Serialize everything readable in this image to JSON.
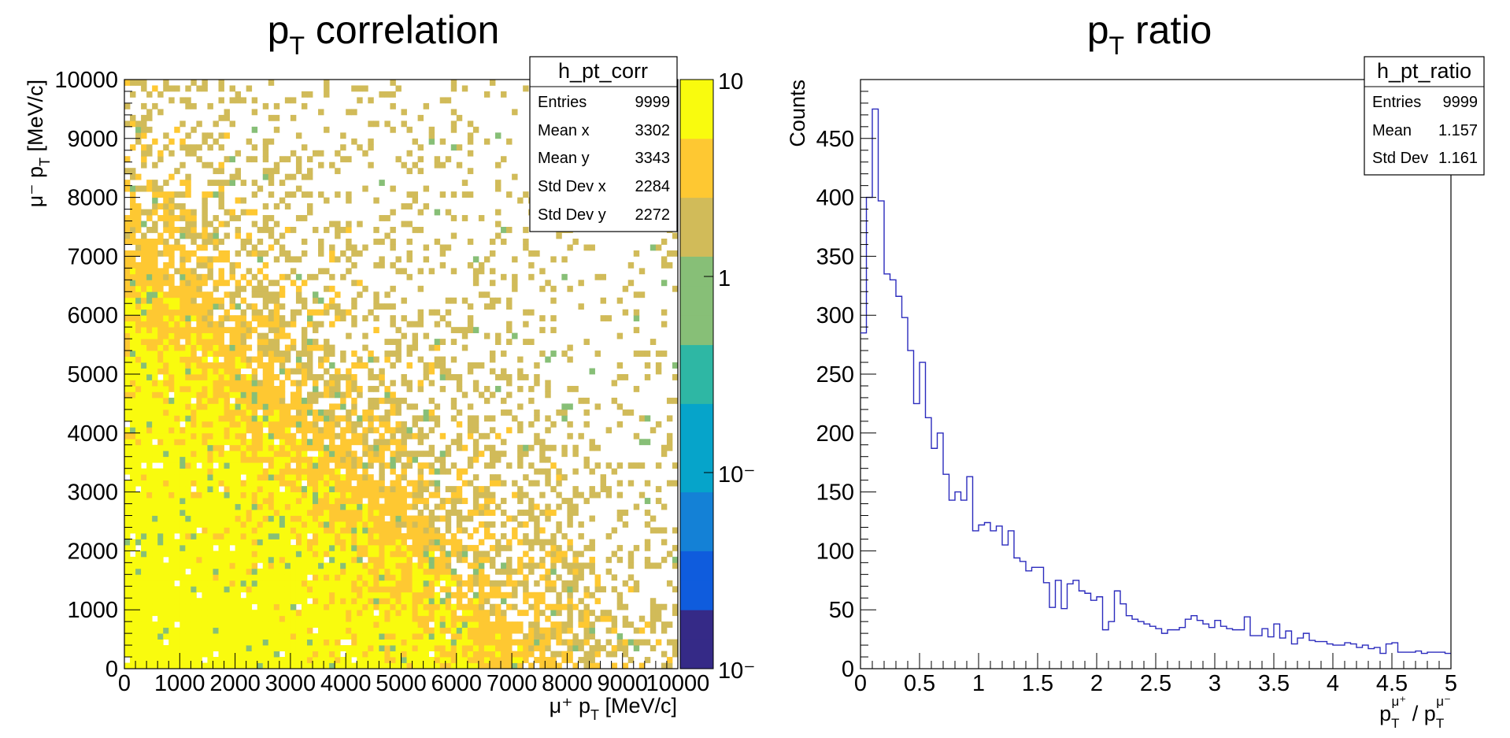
{
  "chart_data": [
    {
      "type": "heatmap",
      "title": "p",
      "title_sub": "T",
      "title_rest": " correlation",
      "xlabel": "μ⁺ p",
      "xlabel_sub": "T",
      "xlabel_rest": " [MeV/c]",
      "ylabel": "μ⁻ p",
      "ylabel_sub": "T",
      "ylabel_rest": " [MeV/c]",
      "xlim": [
        0,
        10000
      ],
      "ylim": [
        0,
        10000
      ],
      "nbins": 100,
      "x_ticks": [
        "0",
        "1000",
        "2000",
        "3000",
        "4000",
        "5000",
        "6000",
        "7000",
        "8000",
        "9000",
        "10000"
      ],
      "y_ticks": [
        "0",
        "1000",
        "2000",
        "3000",
        "4000",
        "5000",
        "6000",
        "7000",
        "8000",
        "9000",
        "10000"
      ],
      "z_log": true,
      "z_ticks": [
        "10",
        "1",
        "10⁻",
        "10⁻"
      ],
      "palette": [
        "#352a87",
        "#0f5cdd",
        "#1481d6",
        "#06a4ca",
        "#2eb7a4",
        "#87bf77",
        "#d1bb59",
        "#fec832",
        "#f9fb0e"
      ],
      "stats": {
        "name": "h_pt_corr",
        "rows": [
          {
            "label": "Entries",
            "value": "9999"
          },
          {
            "label": "Mean x",
            "value": "3302"
          },
          {
            "label": "Mean y",
            "value": "3343"
          },
          {
            "label": "Std Dev x",
            "value": "2284"
          },
          {
            "label": "Std Dev y",
            "value": "2272"
          }
        ]
      },
      "entries": 9999,
      "mean": [
        3302,
        3343
      ],
      "std_dev": [
        2284,
        2272
      ]
    },
    {
      "type": "histogram",
      "title": "p",
      "title_sub": "T",
      "title_rest": " ratio",
      "ylabel": "Counts",
      "xlabel": "p",
      "xlabel_sub": "T",
      "xlabel_sup": "μ⁺",
      "xlabel_mid": " / p",
      "xlabel_sub2": "T",
      "xlabel_sup2": "μ⁻",
      "xlim": [
        0,
        5
      ],
      "ylim": [
        0,
        500
      ],
      "x_ticks": [
        "0",
        "0.5",
        "1",
        "1.5",
        "2",
        "2.5",
        "3",
        "3.5",
        "4",
        "4.5",
        "5"
      ],
      "y_ticks": [
        "0",
        "50",
        "100",
        "150",
        "200",
        "250",
        "300",
        "350",
        "400",
        "450"
      ],
      "line_color": "#2b2bbd",
      "bin_width": 0.05,
      "values": [
        285,
        400,
        475,
        397,
        335,
        330,
        316,
        298,
        270,
        225,
        260,
        213,
        187,
        200,
        165,
        143,
        150,
        143,
        163,
        117,
        122,
        124,
        117,
        121,
        105,
        117,
        94,
        91,
        83,
        86,
        86,
        73,
        52,
        75,
        51,
        72,
        75,
        66,
        64,
        58,
        61,
        33,
        40,
        66,
        55,
        45,
        42,
        40,
        38,
        36,
        34,
        30,
        33,
        33,
        35,
        42,
        45,
        41,
        38,
        35,
        41,
        36,
        34,
        33,
        33,
        44,
        28,
        28,
        34,
        27,
        38,
        26,
        32,
        21,
        26,
        30,
        24,
        23,
        23,
        21,
        20,
        20,
        22,
        21,
        18,
        20,
        17,
        18,
        13,
        21,
        22,
        14,
        14,
        14,
        15,
        13,
        14,
        14,
        14,
        13
      ],
      "stats": {
        "name": "h_pt_ratio",
        "rows": [
          {
            "label": "Entries",
            "value": "9999"
          },
          {
            "label": "Mean",
            "value": "1.157"
          },
          {
            "label": "Std Dev",
            "value": "1.161"
          }
        ]
      },
      "entries": 9999,
      "mean": 1.157,
      "std_dev": 1.161
    }
  ]
}
